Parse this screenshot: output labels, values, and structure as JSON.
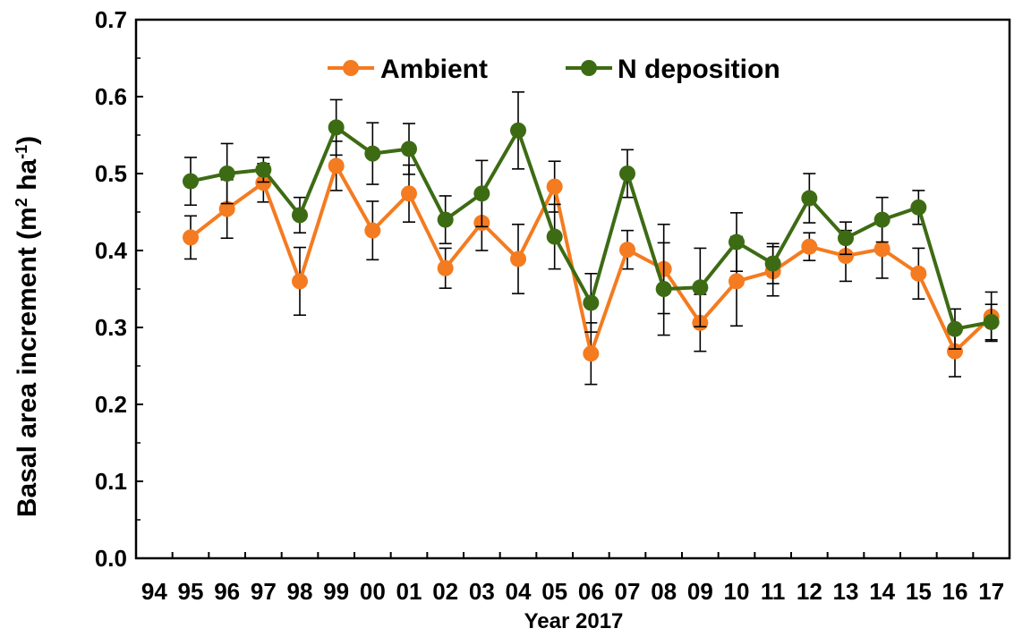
{
  "chart_data": {
    "type": "line",
    "title": "",
    "xlabel": "Year 2017",
    "ylabel_main": "Basal area increment  (m",
    "ylabel_sup1": "2",
    "ylabel_mid": " ha",
    "ylabel_sup2": "-1",
    "ylabel_end": ")",
    "ylim": [
      0,
      0.7
    ],
    "yticks": [
      "0.0",
      "0.1",
      "0.2",
      "0.3",
      "0.4",
      "0.5",
      "0.6",
      "0.7"
    ],
    "categories": [
      "94",
      "95",
      "96",
      "97",
      "98",
      "99",
      "00",
      "01",
      "02",
      "03",
      "04",
      "05",
      "06",
      "07",
      "08",
      "09",
      "10",
      "11",
      "12",
      "13",
      "14",
      "15",
      "16",
      "17"
    ],
    "legend_position": "top-center",
    "series": [
      {
        "name": "Ambient",
        "color": "#f47b20",
        "values": [
          null,
          0.417,
          0.454,
          0.488,
          0.36,
          0.51,
          0.426,
          0.474,
          0.377,
          0.436,
          0.389,
          0.483,
          0.266,
          0.401,
          0.376,
          0.306,
          0.36,
          0.373,
          0.405,
          0.393,
          0.402,
          0.37,
          0.269,
          0.314
        ],
        "errors": [
          null,
          0.028,
          0.038,
          0.025,
          0.044,
          0.032,
          0.038,
          0.037,
          0.026,
          0.036,
          0.045,
          0.033,
          0.04,
          0.025,
          0.058,
          0.037,
          0.058,
          0.032,
          0.018,
          0.033,
          0.038,
          0.033,
          0.033,
          0.032
        ]
      },
      {
        "name": "N deposition",
        "color": "#3d6b14",
        "values": [
          null,
          0.49,
          0.5,
          0.505,
          0.446,
          0.56,
          0.526,
          0.532,
          0.44,
          0.474,
          0.556,
          0.418,
          0.332,
          0.5,
          0.35,
          0.352,
          0.411,
          0.383,
          0.468,
          0.416,
          0.44,
          0.456,
          0.298,
          0.307
        ],
        "errors": [
          null,
          0.031,
          0.039,
          0.016,
          0.023,
          0.036,
          0.04,
          0.033,
          0.031,
          0.043,
          0.05,
          0.042,
          0.038,
          0.031,
          0.06,
          0.051,
          0.038,
          0.026,
          0.032,
          0.021,
          0.029,
          0.022,
          0.026,
          0.023
        ]
      }
    ]
  }
}
